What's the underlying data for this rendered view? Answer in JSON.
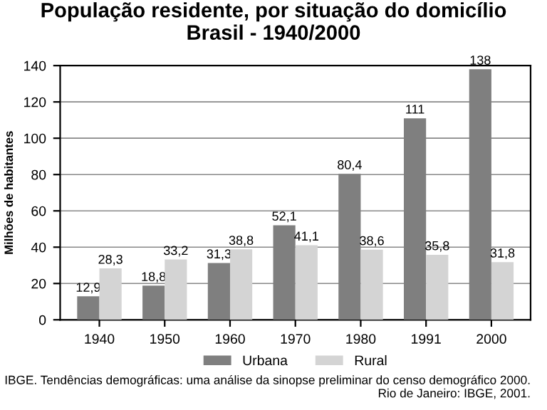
{
  "chart_data": {
    "type": "bar",
    "title": "População residente, por situação do domicílio\nBrasil - 1940/2000",
    "ylabel": "Milhões de habitantes",
    "categories": [
      "1940",
      "1950",
      "1960",
      "1970",
      "1980",
      "1991",
      "2000"
    ],
    "series": [
      {
        "name": "Urbana",
        "color": "#7f7f7f",
        "values": [
          12.9,
          18.8,
          31.3,
          52.1,
          80.4,
          111,
          138
        ],
        "value_labels": [
          "12,9",
          "18,8",
          "31,3",
          "52,1",
          "80,4",
          "111",
          "138"
        ]
      },
      {
        "name": "Rural",
        "color": "#d4d4d4",
        "values": [
          28.3,
          33.2,
          38.8,
          41.1,
          38.6,
          35.8,
          31.8
        ],
        "value_labels": [
          "28,3",
          "33,2",
          "38,8",
          "41,1",
          "38,6",
          "35,8",
          "31,8"
        ]
      }
    ],
    "ylim": [
      0,
      140
    ],
    "yticks": [
      0,
      20,
      40,
      60,
      80,
      100,
      120,
      140
    ],
    "grid": "y",
    "legend": "bottom",
    "annotations": [
      "IBGE. Tendências demográficas: uma análise da sinopse preliminar do censo demográfico 2000. Rio de Janeiro: IBGE, 2001."
    ]
  }
}
